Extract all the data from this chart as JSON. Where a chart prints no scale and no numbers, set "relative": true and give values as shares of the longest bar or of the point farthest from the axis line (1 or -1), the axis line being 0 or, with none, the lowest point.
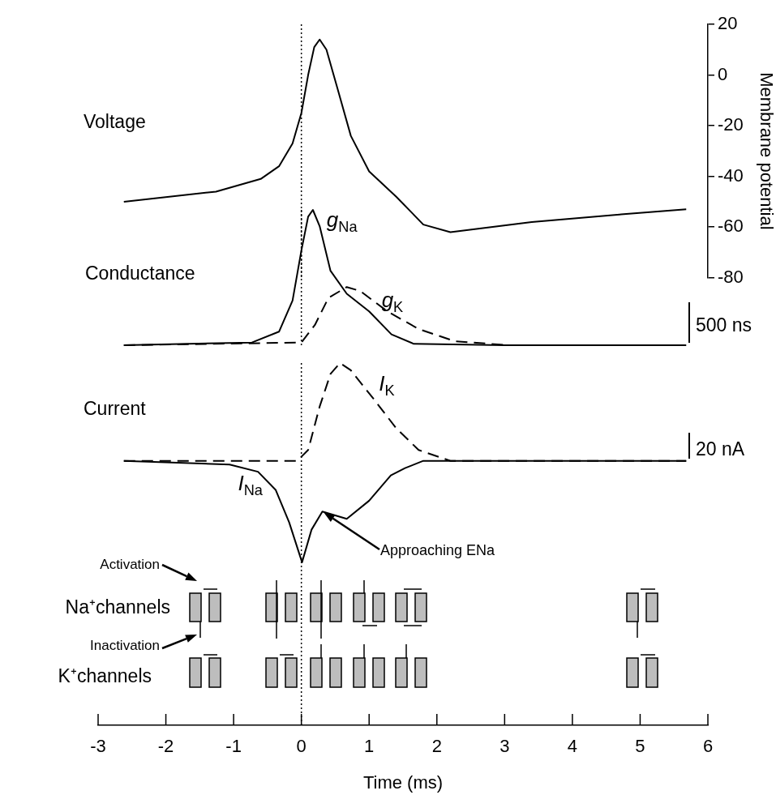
{
  "chart_data": [
    {
      "type": "line",
      "annotations": [
        "Voltage"
      ],
      "ylabel": "Membrane potential",
      "color": "#000000",
      "xlim": [
        -3,
        6
      ],
      "ylim": [
        -80,
        20
      ],
      "yticks": [
        -80,
        -60,
        -40,
        -20,
        0,
        20
      ],
      "tick_labels": "y",
      "ref_lines": [
        {
          "axis": "x",
          "value": 0,
          "line_style": "dotted"
        }
      ],
      "x": [
        -2.62,
        -1.26,
        -0.6,
        -0.33,
        -0.13,
        0,
        0.1,
        0.19,
        0.27,
        0.37,
        0.54,
        0.73,
        1,
        1.4,
        1.8,
        2.2,
        3.4,
        4.72,
        5.68
      ],
      "values": [
        -50,
        -46,
        -41,
        -36,
        -27,
        -15,
        0,
        11,
        14,
        10,
        -6,
        -24,
        -38,
        -48,
        -59,
        -62,
        -58,
        -55,
        -53
      ]
    },
    {
      "type": "line",
      "relative": true,
      "annotations": [
        "Conductance",
        "500 ns"
      ],
      "xlim": [
        -3,
        6
      ],
      "tick_labels": false,
      "ref_lines": [
        {
          "axis": "x",
          "value": 0,
          "line_style": "dotted"
        }
      ],
      "series": [
        {
          "name": "g$_{Na}$",
          "color": "#000000",
          "line_style": "solid",
          "x": [
            -2.62,
            -0.73,
            -0.33,
            -0.13,
            0,
            0.1,
            0.17,
            0.27,
            0.43,
            0.67,
            1,
            1.33,
            1.66,
            3,
            5.68
          ],
          "values": [
            0,
            0.02,
            0.1,
            0.33,
            0.7,
            0.95,
            1,
            0.88,
            0.55,
            0.38,
            0.25,
            0.08,
            0.01,
            0,
            0
          ]
        },
        {
          "name": "g$_{K}$",
          "color": "#000000",
          "line_style": "dashed",
          "x": [
            -2.62,
            0,
            0.2,
            0.4,
            0.67,
            0.87,
            1.27,
            1.73,
            2.26,
            3.06,
            5.68
          ],
          "values": [
            0,
            0.02,
            0.15,
            0.35,
            0.43,
            0.4,
            0.25,
            0.12,
            0.03,
            0,
            0
          ]
        }
      ]
    },
    {
      "type": "line",
      "relative": true,
      "annotations": [
        "Current",
        "20 nA",
        "Approaching ENa",
        "Activation",
        "Inactivation",
        "Na⁺channels",
        "K⁺channels"
      ],
      "xlabel": "Time (ms)",
      "xlim": [
        -3,
        6
      ],
      "xticks": [
        -3,
        -2,
        -1,
        0,
        1,
        2,
        3,
        4,
        5,
        6
      ],
      "tick_labels": "x",
      "ref_lines": [
        {
          "axis": "x",
          "value": 0,
          "line_style": "dotted"
        }
      ],
      "series": [
        {
          "name": "I$_{Na}$",
          "color": "#000000",
          "line_style": "solid",
          "x": [
            -2.62,
            -1.06,
            -0.64,
            -0.38,
            -0.18,
            0.01,
            0.15,
            0.31,
            0.67,
            1,
            1.32,
            1.53,
            1.8,
            5.68
          ],
          "values": [
            0.73,
            0.72,
            0.7,
            0.65,
            0.56,
            0.45,
            0.54,
            0.59,
            0.57,
            0.62,
            0.69,
            0.71,
            0.73,
            0.73
          ]
        },
        {
          "name": "I$_{K}$",
          "color": "#000000",
          "line_style": "dashed",
          "x": [
            -2.62,
            -0.06,
            0.1,
            0.27,
            0.43,
            0.57,
            0.73,
            1.07,
            1.4,
            1.73,
            2.2,
            5.68
          ],
          "values": [
            0.73,
            0.73,
            0.76,
            0.88,
            0.97,
            1,
            0.98,
            0.9,
            0.82,
            0.76,
            0.73,
            0.73
          ]
        }
      ]
    }
  ]
}
